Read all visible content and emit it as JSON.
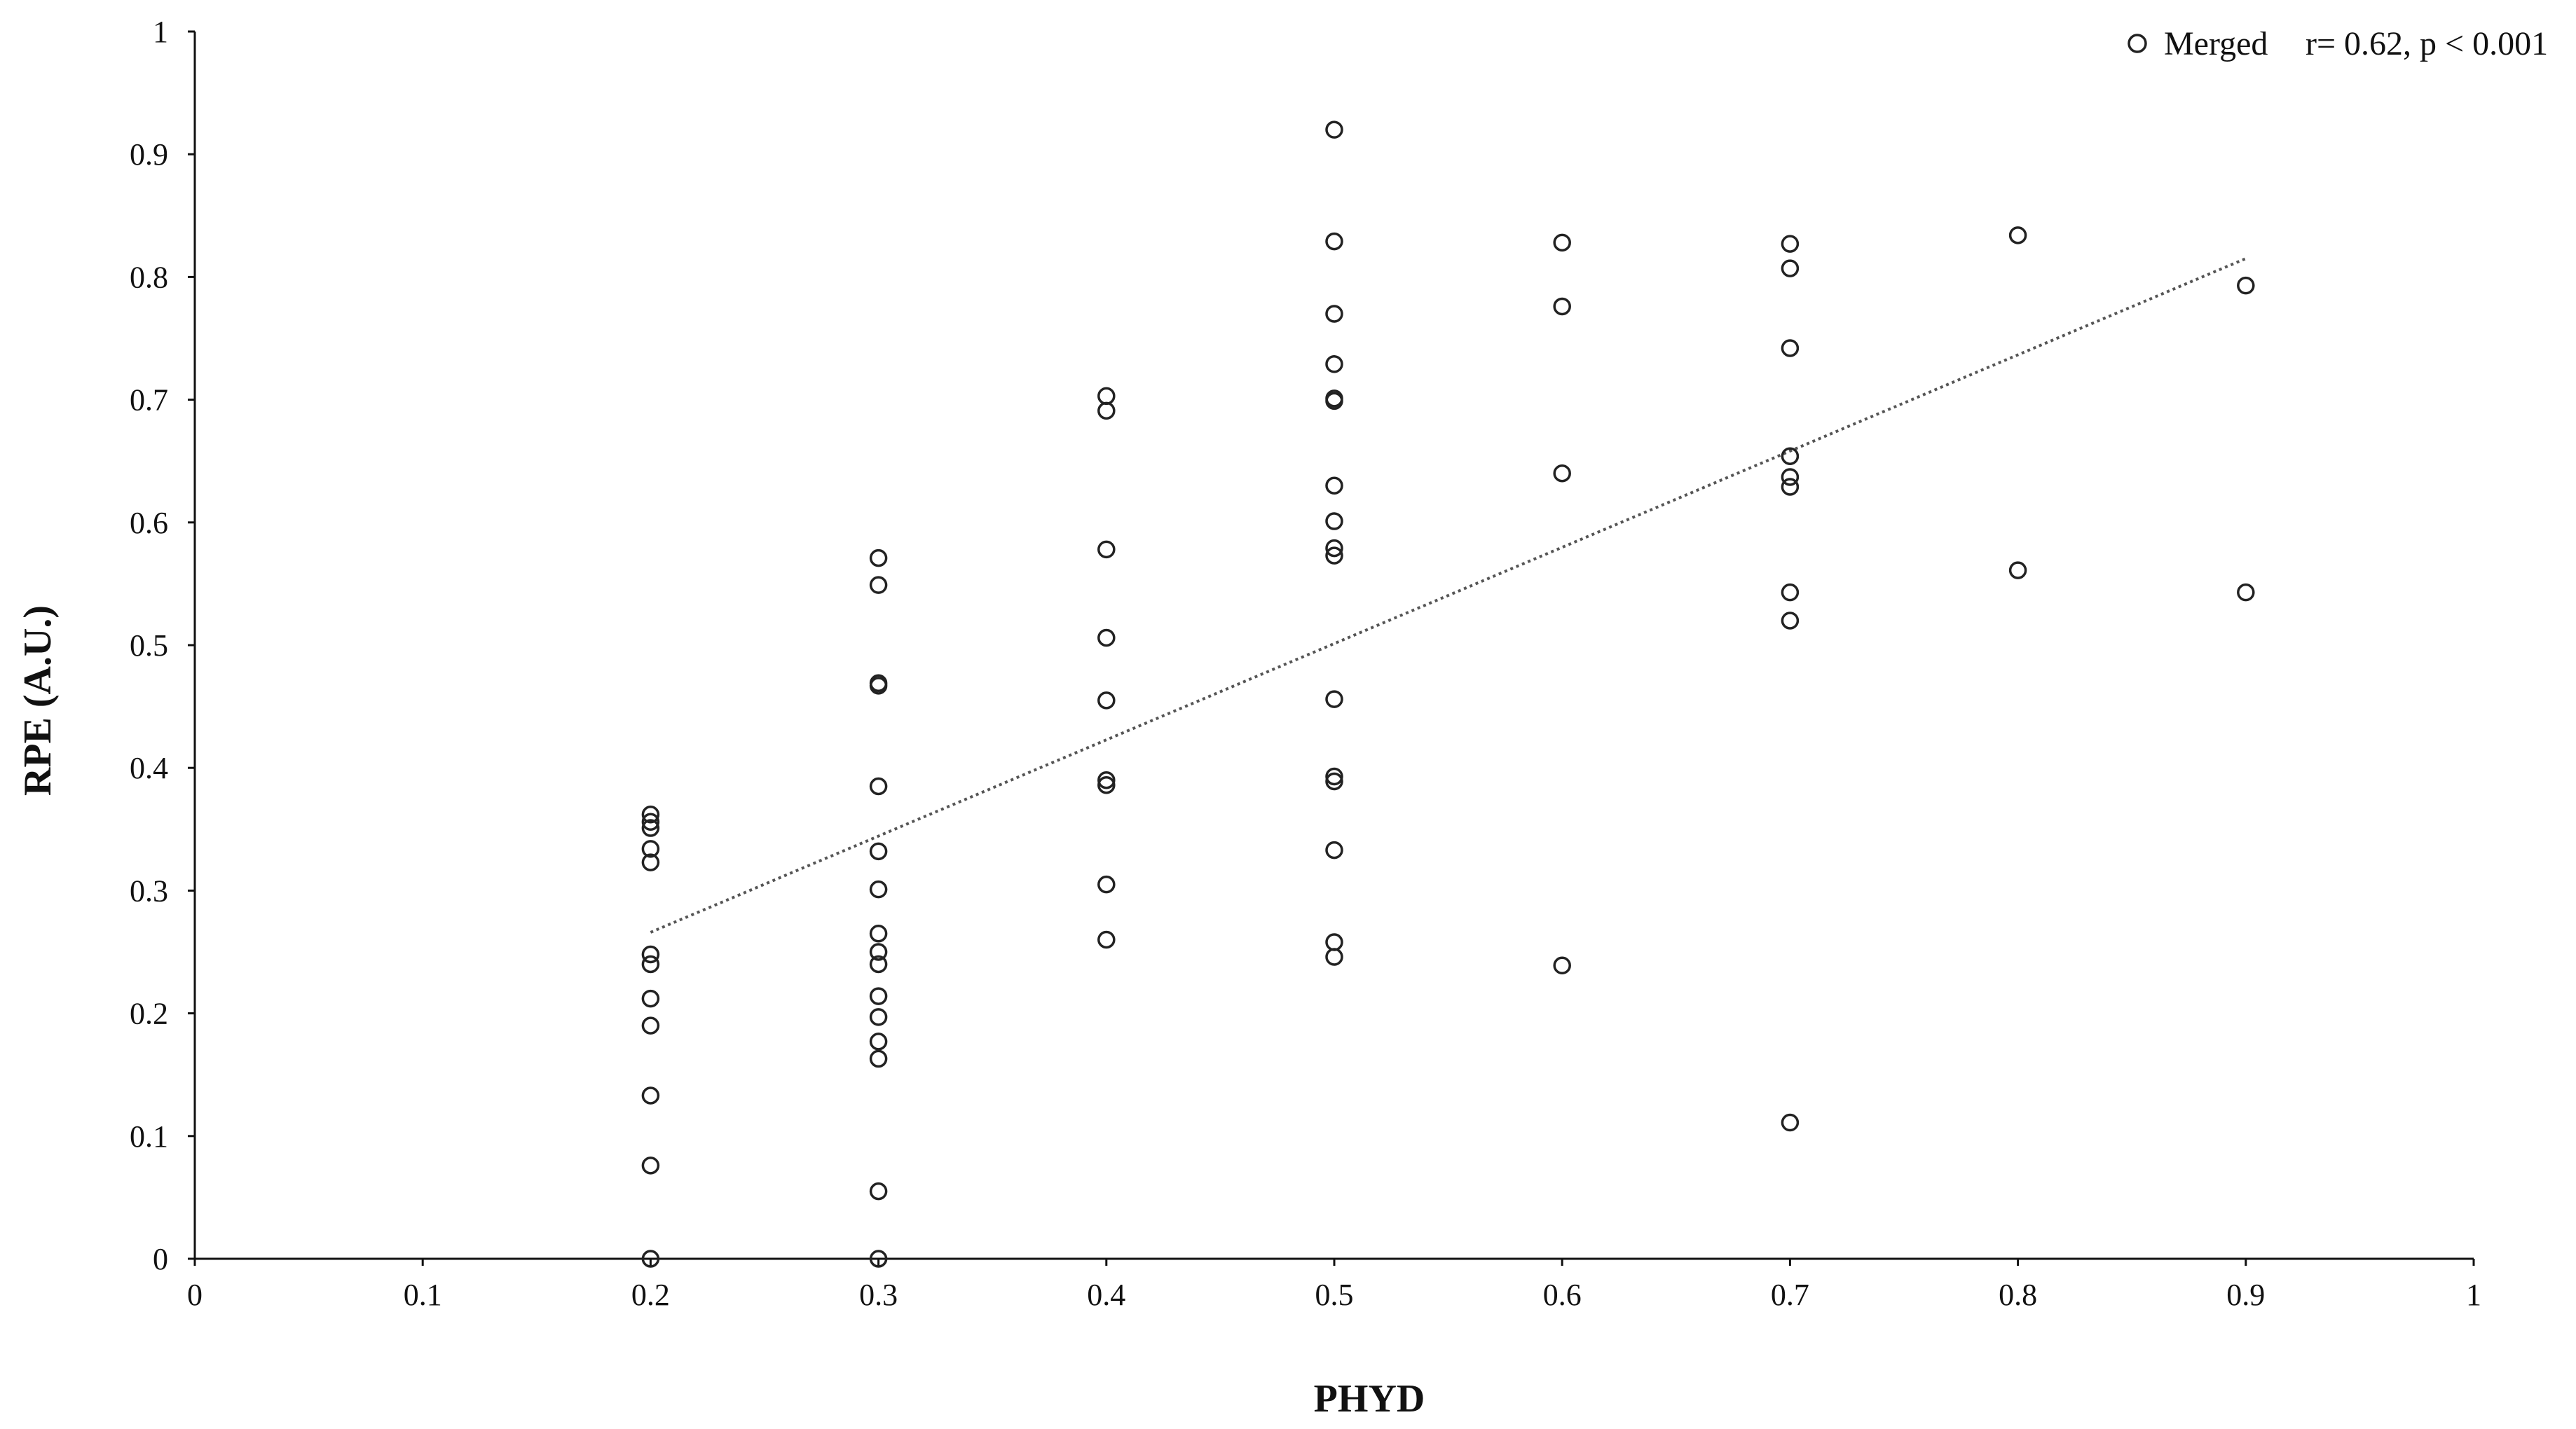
{
  "chart_data": {
    "type": "scatter",
    "title": "",
    "xlabel": "PHYD",
    "ylabel": "RPE (A.U.)",
    "xlim": [
      0,
      1
    ],
    "ylim": [
      0,
      1
    ],
    "x_ticks": [
      "0",
      "0.1",
      "0.2",
      "0.3",
      "0.4",
      "0.5",
      "0.6",
      "0.7",
      "0.8",
      "0.9",
      "1"
    ],
    "y_ticks": [
      "0",
      "0.1",
      "0.2",
      "0.3",
      "0.4",
      "0.5",
      "0.6",
      "0.7",
      "0.8",
      "0.9",
      "1"
    ],
    "grid": false,
    "legend_position": "top-right",
    "series": [
      {
        "name": "Merged",
        "annotation": "r= 0.62, p < 0.001",
        "marker": "open-circle",
        "points": [
          [
            0.2,
            0.362
          ],
          [
            0.2,
            0.356
          ],
          [
            0.2,
            0.351
          ],
          [
            0.2,
            0.334
          ],
          [
            0.2,
            0.323
          ],
          [
            0.2,
            0.248
          ],
          [
            0.2,
            0.24
          ],
          [
            0.2,
            0.212
          ],
          [
            0.2,
            0.19
          ],
          [
            0.2,
            0.133
          ],
          [
            0.2,
            0.076
          ],
          [
            0.2,
            0.0
          ],
          [
            0.3,
            0.571
          ],
          [
            0.3,
            0.549
          ],
          [
            0.3,
            0.469
          ],
          [
            0.3,
            0.467
          ],
          [
            0.3,
            0.385
          ],
          [
            0.3,
            0.332
          ],
          [
            0.3,
            0.301
          ],
          [
            0.3,
            0.265
          ],
          [
            0.3,
            0.25
          ],
          [
            0.3,
            0.24
          ],
          [
            0.3,
            0.214
          ],
          [
            0.3,
            0.197
          ],
          [
            0.3,
            0.177
          ],
          [
            0.3,
            0.163
          ],
          [
            0.3,
            0.055
          ],
          [
            0.3,
            0.0
          ],
          [
            0.4,
            0.703
          ],
          [
            0.4,
            0.691
          ],
          [
            0.4,
            0.578
          ],
          [
            0.4,
            0.506
          ],
          [
            0.4,
            0.455
          ],
          [
            0.4,
            0.39
          ],
          [
            0.4,
            0.386
          ],
          [
            0.4,
            0.305
          ],
          [
            0.4,
            0.26
          ],
          [
            0.5,
            0.92
          ],
          [
            0.5,
            0.829
          ],
          [
            0.5,
            0.77
          ],
          [
            0.5,
            0.729
          ],
          [
            0.5,
            0.701
          ],
          [
            0.5,
            0.699
          ],
          [
            0.5,
            0.63
          ],
          [
            0.5,
            0.601
          ],
          [
            0.5,
            0.579
          ],
          [
            0.5,
            0.573
          ],
          [
            0.5,
            0.456
          ],
          [
            0.5,
            0.393
          ],
          [
            0.5,
            0.389
          ],
          [
            0.5,
            0.333
          ],
          [
            0.5,
            0.258
          ],
          [
            0.5,
            0.246
          ],
          [
            0.6,
            0.828
          ],
          [
            0.6,
            0.776
          ],
          [
            0.6,
            0.64
          ],
          [
            0.6,
            0.239
          ],
          [
            0.7,
            0.827
          ],
          [
            0.7,
            0.807
          ],
          [
            0.7,
            0.742
          ],
          [
            0.7,
            0.654
          ],
          [
            0.7,
            0.637
          ],
          [
            0.7,
            0.629
          ],
          [
            0.7,
            0.543
          ],
          [
            0.7,
            0.52
          ],
          [
            0.7,
            0.111
          ],
          [
            0.8,
            0.834
          ],
          [
            0.8,
            0.561
          ],
          [
            0.9,
            0.793
          ],
          [
            0.9,
            0.543
          ]
        ]
      }
    ],
    "trendline": {
      "style": "dotted",
      "from": [
        0.2,
        0.266
      ],
      "to": [
        0.9,
        0.815
      ]
    },
    "colors": {
      "marker": "#222222",
      "axis": "#111111",
      "trendline": "#555555"
    }
  }
}
